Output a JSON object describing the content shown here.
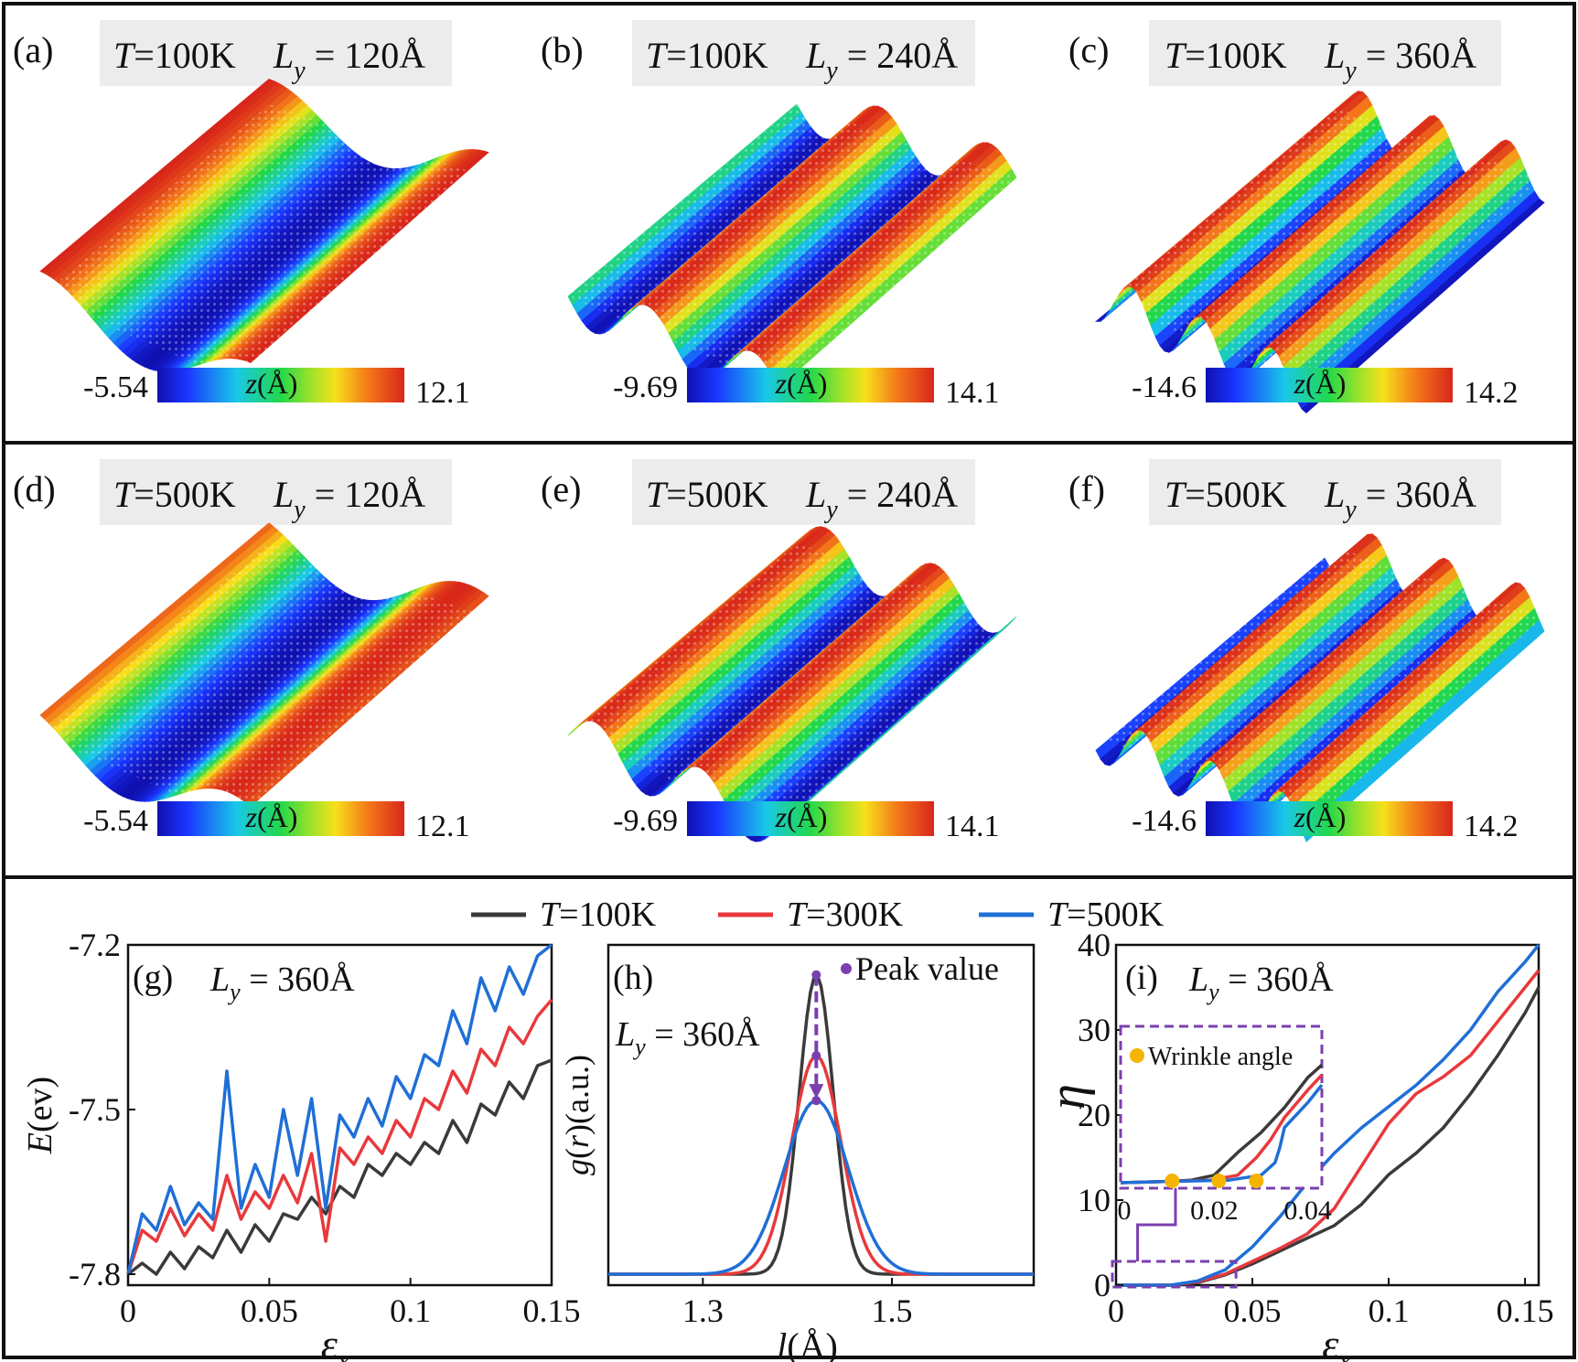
{
  "panels": [
    {
      "letter": "(a)",
      "T": "T=100K",
      "Ly": "L",
      "Ly_sub": "y",
      "Ly_val": " = 120Å",
      "cb_min": "-5.54",
      "cb_max": "12.1",
      "cb_label": "z(Å)",
      "waves": 1,
      "phase": 0
    },
    {
      "letter": "(b)",
      "T": "T=100K",
      "Ly": "L",
      "Ly_sub": "y",
      "Ly_val": " = 240Å",
      "cb_min": "-9.69",
      "cb_max": "14.1",
      "cb_label": "z(Å)",
      "waves": 2,
      "phase": 0.25
    },
    {
      "letter": "(c)",
      "T": "T=100K",
      "Ly": "L",
      "Ly_sub": "y",
      "Ly_val": " = 360Å",
      "cb_min": "-14.6",
      "cb_max": "14.2",
      "cb_label": "z(Å)",
      "waves": 3,
      "phase": 0.5
    },
    {
      "letter": "(d)",
      "T": "T=500K",
      "Ly": "L",
      "Ly_sub": "y",
      "Ly_val": " = 120Å",
      "cb_min": "-5.54",
      "cb_max": "12.1",
      "cb_label": "z(Å)",
      "waves": 1,
      "phase": 0.1
    },
    {
      "letter": "(e)",
      "T": "T=500K",
      "Ly": "L",
      "Ly_sub": "y",
      "Ly_val": " = 240Å",
      "cb_min": "-9.69",
      "cb_max": "14.1",
      "cb_label": "z(Å)",
      "waves": 2,
      "phase": 0.75
    },
    {
      "letter": "(f)",
      "T": "T=500K",
      "Ly": "L",
      "Ly_sub": "y",
      "Ly_val": " = 360Å",
      "cb_min": "-14.6",
      "cb_max": "14.2",
      "cb_label": "z(Å)",
      "waves": 3,
      "phase": 0.35
    }
  ],
  "legend": {
    "entries": [
      {
        "label": "T=100K",
        "color": "#3a3a3a"
      },
      {
        "label": "T=300K",
        "color": "#e8393c"
      },
      {
        "label": "T=500K",
        "color": "#1f6fd6"
      }
    ]
  },
  "chart_data": [
    {
      "type": "line",
      "panel": "(g)",
      "annotation": "L",
      "annotation_sub": "y",
      "annotation_val": " = 360Å",
      "xlabel": "ε",
      "xlabel_sub": "x",
      "ylabel": "E(ev)",
      "xlim": [
        0,
        0.15
      ],
      "ylim": [
        -7.82,
        -7.2
      ],
      "xticks": [
        0,
        0.05,
        0.1,
        0.15
      ],
      "xtick_labels": [
        "0",
        "0.05",
        "0.1",
        "0.15"
      ],
      "yticks": [
        -7.8,
        -7.5,
        -7.2
      ],
      "ytick_labels": [
        "-7.8",
        "-7.5",
        "-7.2"
      ],
      "series": [
        {
          "name": "T=100K",
          "x": [
            0,
            0.005,
            0.01,
            0.015,
            0.02,
            0.025,
            0.03,
            0.035,
            0.04,
            0.045,
            0.05,
            0.055,
            0.06,
            0.065,
            0.07,
            0.075,
            0.08,
            0.085,
            0.09,
            0.095,
            0.1,
            0.105,
            0.11,
            0.115,
            0.12,
            0.125,
            0.13,
            0.135,
            0.14,
            0.145,
            0.15
          ],
          "y": [
            -7.8,
            -7.78,
            -7.8,
            -7.76,
            -7.79,
            -7.75,
            -7.77,
            -7.72,
            -7.76,
            -7.71,
            -7.74,
            -7.69,
            -7.7,
            -7.66,
            -7.69,
            -7.64,
            -7.66,
            -7.6,
            -7.62,
            -7.58,
            -7.6,
            -7.56,
            -7.58,
            -7.52,
            -7.56,
            -7.49,
            -7.51,
            -7.45,
            -7.48,
            -7.42,
            -7.41
          ]
        },
        {
          "name": "T=300K",
          "x": [
            0,
            0.005,
            0.01,
            0.015,
            0.02,
            0.025,
            0.03,
            0.035,
            0.04,
            0.045,
            0.05,
            0.055,
            0.06,
            0.065,
            0.07,
            0.075,
            0.08,
            0.085,
            0.09,
            0.095,
            0.1,
            0.105,
            0.11,
            0.115,
            0.12,
            0.125,
            0.13,
            0.135,
            0.14,
            0.145,
            0.15
          ],
          "y": [
            -7.8,
            -7.72,
            -7.74,
            -7.68,
            -7.73,
            -7.69,
            -7.72,
            -7.62,
            -7.7,
            -7.65,
            -7.68,
            -7.62,
            -7.67,
            -7.58,
            -7.74,
            -7.57,
            -7.6,
            -7.55,
            -7.58,
            -7.52,
            -7.55,
            -7.48,
            -7.5,
            -7.43,
            -7.47,
            -7.39,
            -7.42,
            -7.35,
            -7.38,
            -7.33,
            -7.3
          ]
        },
        {
          "name": "T=500K",
          "x": [
            0,
            0.005,
            0.01,
            0.015,
            0.02,
            0.025,
            0.03,
            0.035,
            0.04,
            0.045,
            0.05,
            0.055,
            0.06,
            0.065,
            0.07,
            0.075,
            0.08,
            0.085,
            0.09,
            0.095,
            0.1,
            0.105,
            0.11,
            0.115,
            0.12,
            0.125,
            0.13,
            0.135,
            0.14,
            0.145,
            0.15
          ],
          "y": [
            -7.8,
            -7.69,
            -7.72,
            -7.64,
            -7.71,
            -7.67,
            -7.7,
            -7.43,
            -7.68,
            -7.6,
            -7.66,
            -7.5,
            -7.62,
            -7.48,
            -7.68,
            -7.51,
            -7.55,
            -7.48,
            -7.53,
            -7.44,
            -7.48,
            -7.4,
            -7.42,
            -7.32,
            -7.38,
            -7.26,
            -7.32,
            -7.24,
            -7.29,
            -7.22,
            -7.2
          ]
        }
      ]
    },
    {
      "type": "line",
      "panel": "(h)",
      "annotation": "L",
      "annotation_sub": "y",
      "annotation_val": " = 360Å",
      "peak_label": "Peak value",
      "xlabel": "l(Å)",
      "ylabel": "g(r)(a.u.)",
      "xlim": [
        1.2,
        1.65
      ],
      "ylim": [
        0,
        1.1
      ],
      "xticks": [
        1.3,
        1.5
      ],
      "xtick_labels": [
        "1.3",
        "1.5"
      ],
      "series": [
        {
          "name": "T=100K",
          "center": 1.42,
          "sigma": 0.018,
          "peak": 1.0
        },
        {
          "name": "T=300K",
          "center": 1.42,
          "sigma": 0.026,
          "peak": 0.73
        },
        {
          "name": "T=500K",
          "center": 1.42,
          "sigma": 0.034,
          "peak": 0.58
        }
      ]
    },
    {
      "type": "line",
      "panel": "(i)",
      "annotation": "L",
      "annotation_sub": "y",
      "annotation_val": " = 360Å",
      "inset_label": "Wrinkle angle",
      "xlabel": "ε",
      "xlabel_sub": "x",
      "ylabel": "η",
      "xlim": [
        0,
        0.155
      ],
      "ylim": [
        0,
        40
      ],
      "xticks": [
        0,
        0.05,
        0.1,
        0.15
      ],
      "xtick_labels": [
        "0",
        "0.05",
        "0.1",
        "0.15"
      ],
      "yticks": [
        0,
        10,
        20,
        30,
        40
      ],
      "ytick_labels": [
        "0",
        "10",
        "20",
        "30",
        "40"
      ],
      "inset_xticks": [
        "0",
        "0.02",
        "0.04"
      ],
      "inset_markers_x": [
        0.011,
        0.021,
        0.029
      ],
      "series": [
        {
          "name": "T=100K",
          "x": [
            0,
            0.02,
            0.03,
            0.04,
            0.05,
            0.06,
            0.07,
            0.08,
            0.09,
            0.1,
            0.11,
            0.12,
            0.13,
            0.14,
            0.15,
            0.155
          ],
          "y": [
            0,
            0,
            0.3,
            1.2,
            2.5,
            4,
            5.5,
            7,
            9.5,
            13,
            15.5,
            18.5,
            22.5,
            27,
            32,
            35
          ]
        },
        {
          "name": "T=300K",
          "x": [
            0,
            0.02,
            0.03,
            0.04,
            0.05,
            0.06,
            0.07,
            0.08,
            0.09,
            0.1,
            0.11,
            0.12,
            0.13,
            0.14,
            0.15,
            0.155
          ],
          "y": [
            0,
            0,
            0.4,
            1.3,
            2.8,
            4.3,
            6,
            9,
            14,
            19,
            22.5,
            24.5,
            27,
            31,
            35,
            37
          ]
        },
        {
          "name": "T=500K",
          "x": [
            0,
            0.02,
            0.03,
            0.04,
            0.05,
            0.06,
            0.07,
            0.08,
            0.09,
            0.1,
            0.11,
            0.12,
            0.13,
            0.14,
            0.15,
            0.155
          ],
          "y": [
            0,
            0,
            0.5,
            1.8,
            4.5,
            8,
            12,
            15.5,
            18.5,
            21,
            23.5,
            26.5,
            30,
            34.5,
            38,
            40
          ]
        }
      ]
    }
  ]
}
